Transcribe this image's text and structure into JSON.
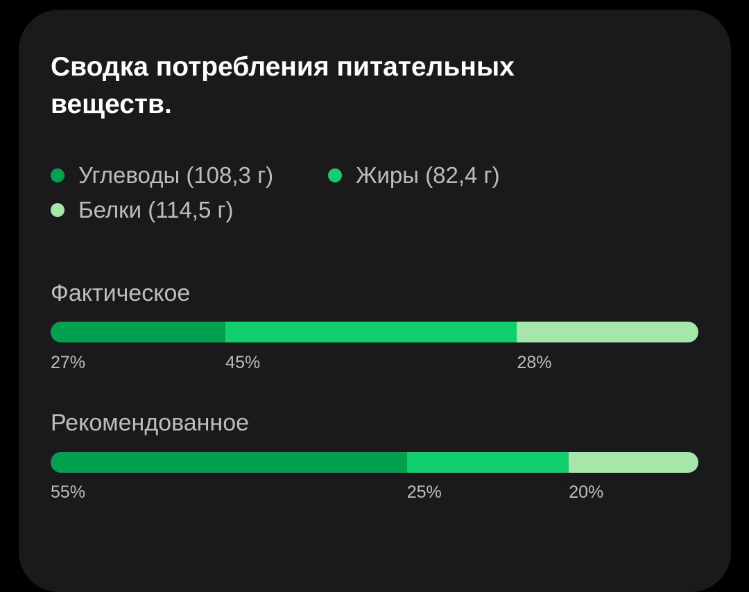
{
  "title": "Сводка потребления питательных веществ.",
  "colors": {
    "carbs": "#02a150",
    "fats": "#10cf6c",
    "proteins": "#a6e6a8"
  },
  "legend": [
    {
      "key": "carbs",
      "label": "Углеводы (108,3 г)"
    },
    {
      "key": "fats",
      "label": "Жиры (82,4 г)"
    },
    {
      "key": "proteins",
      "label": "Белки (114,5 г)"
    }
  ],
  "actual": {
    "label": "Фактическое",
    "segments": [
      {
        "key": "carbs",
        "percent": 27,
        "label": "27%"
      },
      {
        "key": "fats",
        "percent": 45,
        "label": "45%"
      },
      {
        "key": "proteins",
        "percent": 28,
        "label": "28%"
      }
    ]
  },
  "recommended": {
    "label": "Рекомендованное",
    "segments": [
      {
        "key": "carbs",
        "percent": 55,
        "label": "55%"
      },
      {
        "key": "fats",
        "percent": 25,
        "label": "25%"
      },
      {
        "key": "proteins",
        "percent": 20,
        "label": "20%"
      }
    ]
  }
}
